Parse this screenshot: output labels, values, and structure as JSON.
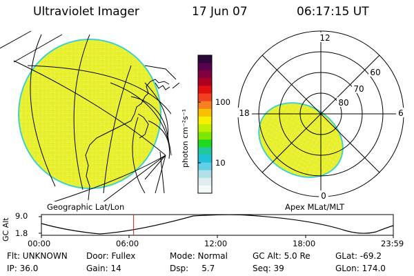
{
  "header": {
    "title": "Ultraviolet Imager",
    "date": "17 Jun 07",
    "time": "06:17:15 UT"
  },
  "colorbar": {
    "label": "photon cm⁻²s⁻¹",
    "ticks": [
      "100",
      "10"
    ],
    "colors_top_to_bottom": [
      "#2a0838",
      "#5a0050",
      "#800040",
      "#b00020",
      "#e01010",
      "#f04020",
      "#f88020",
      "#f8c000",
      "#f8f000",
      "#c0f000",
      "#80e800",
      "#20d820",
      "#20c8a0",
      "#20c0d8",
      "#60d0e8",
      "#b0e0e8",
      "#e0eef0",
      "#f4f8f8"
    ]
  },
  "geo_panel": {
    "caption": "Geographic Lat/Lon",
    "fill_color": "#e8f030",
    "edge_color": "#40d0d0"
  },
  "polar_panel": {
    "caption": "Apex MLat/MLT",
    "mlt_labels": {
      "top": "12",
      "bottom": "0",
      "left": "18",
      "right": "6"
    },
    "lat_labels": [
      "60",
      "70",
      "80"
    ]
  },
  "altitude_plot": {
    "ylabel": "GC Alt",
    "y_ticks": [
      "9.0",
      "1.8"
    ],
    "x_ticks": [
      "00:00",
      "06:00",
      "12:00",
      "18:00",
      "23:59"
    ],
    "marker_time_hours": 6.29,
    "marker_color": "#c02020"
  },
  "info": {
    "filter": "Flt: UNKNOWN",
    "door": "Door: Fullex",
    "mode": "Mode: Normal",
    "gc_alt": "GC Alt: 5.0 Re",
    "glat": "GLat: -69.2",
    "ip": "IP: 36.0",
    "gain": "Gain: 14",
    "dsp": "Dsp:     5.7",
    "seq": "Seq: 39",
    "glon": "GLon: 174.0"
  }
}
